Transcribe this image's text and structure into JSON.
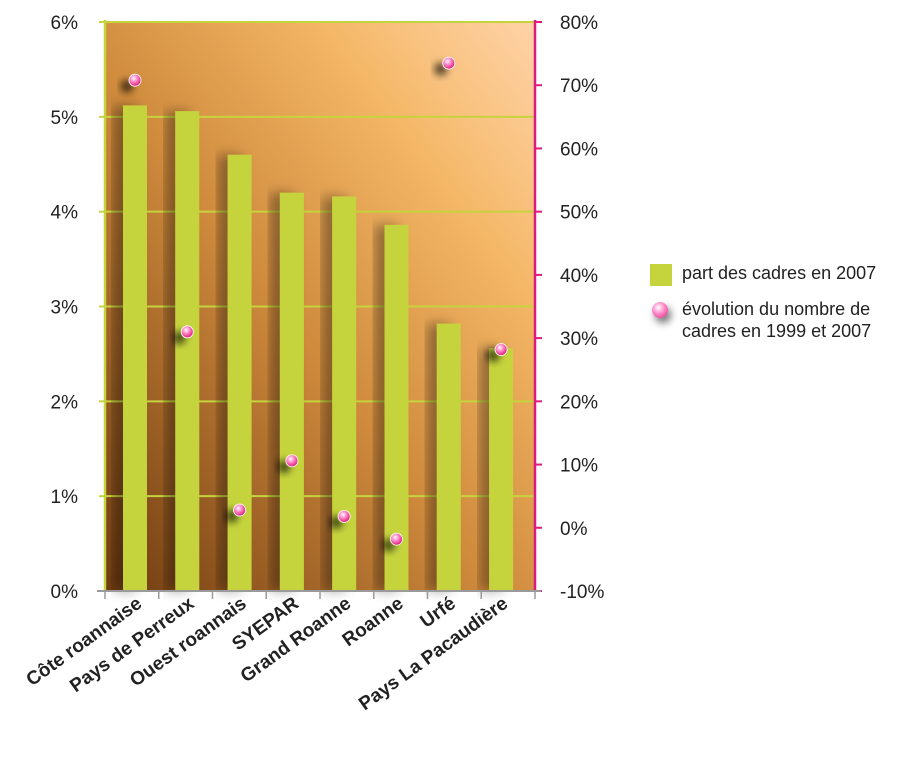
{
  "chart_data": {
    "type": "bar",
    "categories": [
      "Côte roannaise",
      "Pays de Perreux",
      "Ouest roannais",
      "SYEPAR",
      "Grand Roanne",
      "Roanne",
      "Urfé",
      "Pays La Pacaudière"
    ],
    "series": [
      {
        "name": "part des cadres en 2007",
        "type": "bar",
        "axis": "left",
        "color": "#c5d43c",
        "values": [
          5.12,
          5.06,
          4.6,
          4.2,
          4.16,
          3.86,
          2.82,
          2.56
        ]
      },
      {
        "name": "évolution du nombre de cadres en 1999 et 2007",
        "type": "scatter",
        "axis": "right",
        "color": "#e0197f",
        "values": [
          70.8,
          31.0,
          2.8,
          10.6,
          1.8,
          -1.8,
          73.5,
          28.2
        ]
      }
    ],
    "y_left": {
      "min": 0,
      "max": 6,
      "step": 1,
      "tick_labels": [
        "0%",
        "1%",
        "2%",
        "3%",
        "4%",
        "5%",
        "6%"
      ],
      "color": "#c5d43c"
    },
    "y_right": {
      "min": -10,
      "max": 80,
      "step": 10,
      "tick_labels": [
        "-10%",
        "0%",
        "10%",
        "20%",
        "30%",
        "40%",
        "50%",
        "60%",
        "70%",
        "80%"
      ],
      "color": "#e0197f"
    },
    "grid": true,
    "legend_position": "right",
    "title": "",
    "xlabel": ""
  }
}
